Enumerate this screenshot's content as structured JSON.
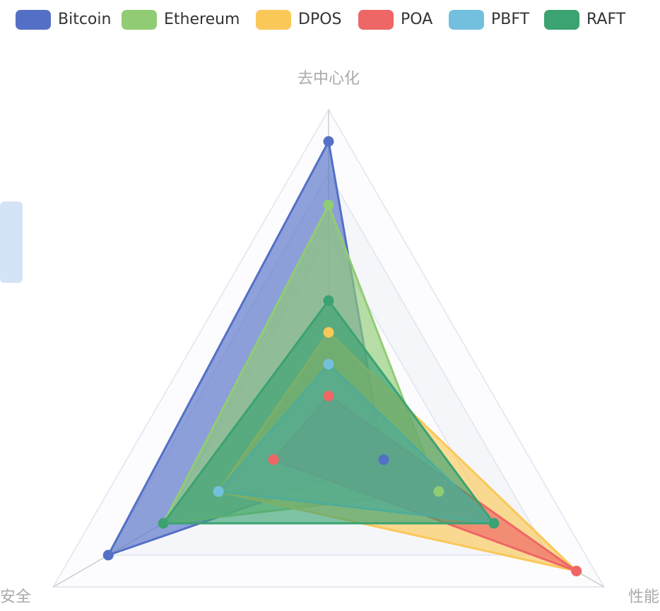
{
  "chart_data": {
    "type": "radar",
    "indicators": [
      "去中心化",
      "性能",
      "安全"
    ],
    "rlim": [
      0,
      100
    ],
    "rticks": [
      20,
      40,
      60,
      80,
      100
    ],
    "series": [
      {
        "name": "Bitcoin",
        "color": "#5470c6",
        "values": [
          90,
          20,
          80
        ]
      },
      {
        "name": "Ethereum",
        "color": "#91cc75",
        "values": [
          70,
          40,
          60
        ]
      },
      {
        "name": "DPOS",
        "color": "#fac858",
        "values": [
          30,
          90,
          40
        ]
      },
      {
        "name": "POA",
        "color": "#ee6666",
        "values": [
          10,
          90,
          20
        ]
      },
      {
        "name": "PBFT",
        "color": "#73c0de",
        "values": [
          20,
          60,
          40
        ]
      },
      {
        "name": "RAFT",
        "color": "#3ba272",
        "values": [
          40,
          60,
          60
        ]
      }
    ]
  }
}
